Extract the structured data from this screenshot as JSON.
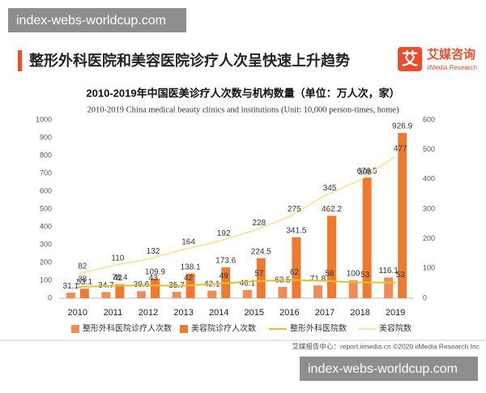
{
  "watermark": {
    "top": "index-webs-worldcup.com",
    "bottom": "index-webs-worldcup.com"
  },
  "header": {
    "title": "整形外科医院和美容医院诊疗人次呈快速上升趋势",
    "logo_mark": "艾",
    "logo_name": "艾媒咨询",
    "logo_english": "iiMedia Research"
  },
  "footer": "艾媒报告中心：report.iimedia.cn   ©2020  iiMedia Research  Inc",
  "chart_data": {
    "type": "bar",
    "title": "2010-2019年中国医美诊疗人次数与机构数量（单位：万人次，家）",
    "subtitle": "2010-2019 China medical beauty clinics and institutions (Unit: 10,000 person-times, home)",
    "categories": [
      "2010",
      "2011",
      "2012",
      "2013",
      "2014",
      "2015",
      "2016",
      "2017",
      "2018",
      "2019"
    ],
    "ylim": [
      0,
      1000
    ],
    "yticks": [
      0,
      100,
      200,
      300,
      400,
      500,
      600,
      700,
      800,
      900,
      1000
    ],
    "y2lim": [
      0,
      600
    ],
    "y2ticks": [
      0,
      100,
      200,
      300,
      400,
      500,
      600
    ],
    "grid": false,
    "series": [
      {
        "name": "整形外科医院诊疗人次数",
        "type": "bar",
        "color": "#f08c55",
        "values": [
          31.1,
          34.7,
          39.6,
          35.7,
          42.1,
          46.1,
          63.5,
          71.8,
          100,
          116.1
        ]
      },
      {
        "name": "美容院诊疗人次数",
        "type": "bar",
        "color": "#ee7a2f",
        "values": [
          53.1,
          78.4,
          109.9,
          138.1,
          173.6,
          224.5,
          341.5,
          462.2,
          676.5,
          926.9
        ]
      },
      {
        "name": "整形外科医院数",
        "type": "line",
        "axis": "y2",
        "color": "#e5c02a",
        "values": [
          38,
          42,
          43,
          42,
          49,
          57,
          62,
          58,
          53,
          53
        ]
      },
      {
        "name": "美容院数",
        "type": "line",
        "axis": "y2",
        "color": "#f6e7a6",
        "values": [
          82,
          110,
          132,
          164,
          192,
          228,
          275,
          345,
          398,
          477
        ]
      }
    ]
  }
}
